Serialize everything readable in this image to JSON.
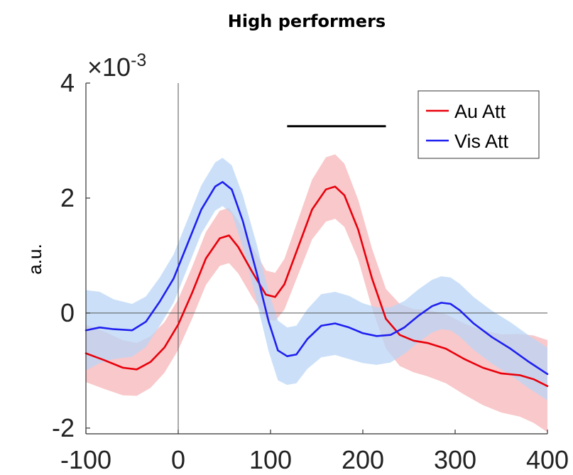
{
  "chart_data": {
    "type": "line",
    "title": "High performers",
    "xlabel": "",
    "ylabel": "a.u.",
    "y_multiplier_label": "×10",
    "y_multiplier_exponent": "-3",
    "xlim": [
      -100,
      400
    ],
    "ylim": [
      -2.1,
      4.0
    ],
    "xticks": [
      -100,
      0,
      100,
      200,
      300,
      400
    ],
    "xtick_labels": [
      "-100",
      "0",
      "100",
      "200",
      "300",
      "400"
    ],
    "yticks": [
      -2,
      0,
      2,
      4
    ],
    "ytick_labels": [
      "-2",
      "0",
      "2",
      "4"
    ],
    "grid": false,
    "legend_position": "top-right",
    "reference_lines": {
      "x": 0,
      "y": 0
    },
    "significance_bar": {
      "x_start": 118,
      "x_end": 225,
      "y": 3.25
    },
    "series": [
      {
        "name": "Au Att",
        "color": "#e8000b",
        "band_color": "#f7b6b8",
        "x": [
          -100,
          -80,
          -60,
          -45,
          -30,
          -15,
          0,
          15,
          30,
          45,
          55,
          65,
          80,
          95,
          105,
          115,
          130,
          145,
          160,
          170,
          180,
          195,
          210,
          225,
          240,
          255,
          270,
          290,
          310,
          330,
          350,
          370,
          385,
          400
        ],
        "y": [
          -0.7,
          -0.82,
          -0.95,
          -0.98,
          -0.85,
          -0.6,
          -0.2,
          0.35,
          0.95,
          1.3,
          1.35,
          1.15,
          0.72,
          0.32,
          0.28,
          0.5,
          1.15,
          1.8,
          2.15,
          2.2,
          2.05,
          1.45,
          0.6,
          -0.1,
          -0.38,
          -0.48,
          -0.52,
          -0.62,
          -0.8,
          -0.95,
          -1.05,
          -1.08,
          -1.15,
          -1.27
        ],
        "err": [
          0.5,
          0.5,
          0.48,
          0.46,
          0.45,
          0.44,
          0.44,
          0.45,
          0.46,
          0.48,
          0.48,
          0.46,
          0.44,
          0.42,
          0.42,
          0.44,
          0.48,
          0.52,
          0.56,
          0.56,
          0.55,
          0.52,
          0.52,
          0.52,
          0.54,
          0.55,
          0.58,
          0.6,
          0.62,
          0.65,
          0.68,
          0.72,
          0.76,
          0.8
        ]
      },
      {
        "name": "Vis Att",
        "color": "#1f1ff0",
        "band_color": "#b9d6f5",
        "x": [
          -100,
          -85,
          -70,
          -50,
          -35,
          -20,
          -5,
          10,
          25,
          40,
          48,
          58,
          70,
          85,
          98,
          108,
          118,
          128,
          140,
          155,
          170,
          185,
          200,
          215,
          230,
          245,
          260,
          275,
          285,
          295,
          305,
          320,
          340,
          360,
          380,
          400
        ],
        "y": [
          -0.3,
          -0.25,
          -0.28,
          -0.3,
          -0.15,
          0.2,
          0.6,
          1.2,
          1.8,
          2.2,
          2.28,
          2.15,
          1.6,
          0.7,
          -0.15,
          -0.65,
          -0.75,
          -0.72,
          -0.45,
          -0.22,
          -0.18,
          -0.25,
          -0.35,
          -0.4,
          -0.38,
          -0.25,
          -0.05,
          0.12,
          0.18,
          0.16,
          0.05,
          -0.18,
          -0.42,
          -0.62,
          -0.85,
          -1.06
        ],
        "err": [
          0.7,
          0.62,
          0.52,
          0.46,
          0.44,
          0.42,
          0.42,
          0.42,
          0.42,
          0.42,
          0.42,
          0.42,
          0.45,
          0.5,
          0.52,
          0.52,
          0.5,
          0.5,
          0.52,
          0.55,
          0.55,
          0.55,
          0.52,
          0.5,
          0.48,
          0.46,
          0.46,
          0.46,
          0.46,
          0.46,
          0.46,
          0.46,
          0.46,
          0.46,
          0.46,
          0.46
        ]
      }
    ]
  }
}
